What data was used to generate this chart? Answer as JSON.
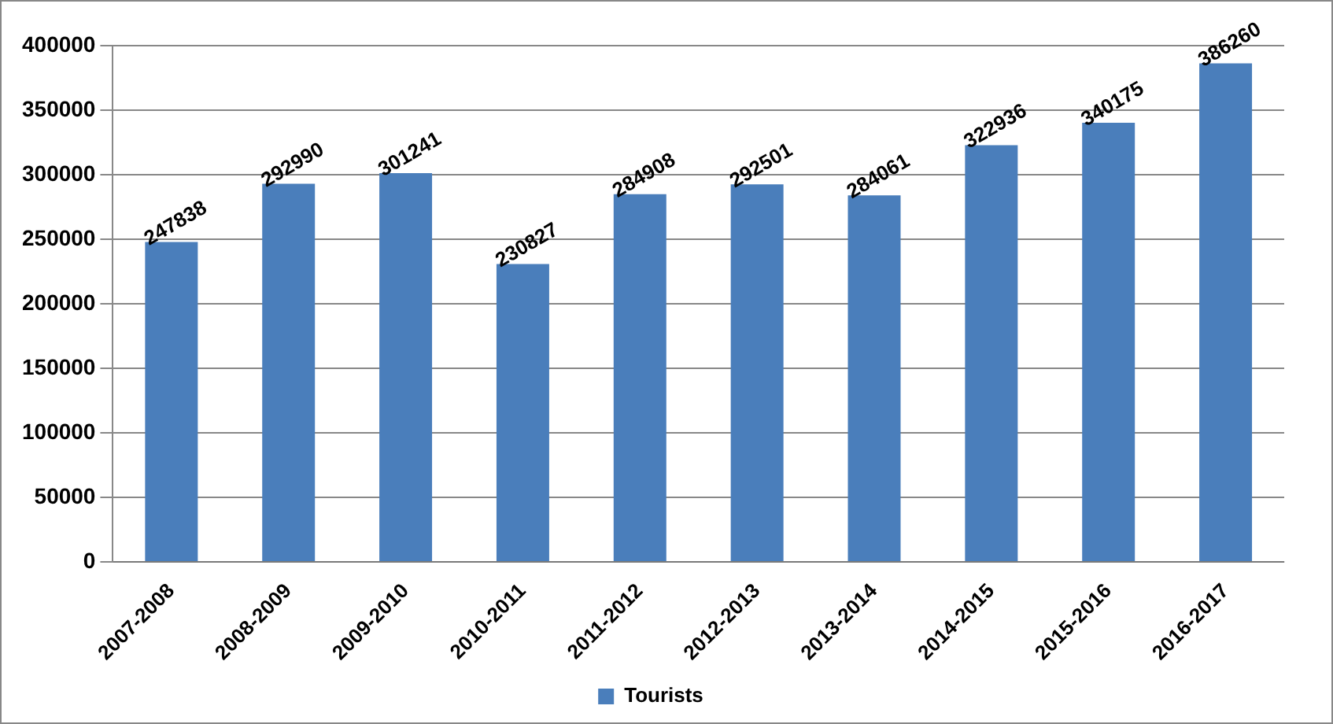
{
  "chart_data": {
    "type": "bar",
    "categories": [
      "2007-2008",
      "2008-2009",
      "2009-2010",
      "2010-2011",
      "2011-2012",
      "2012-2013",
      "2013-2014",
      "2014-2015",
      "2015-2016",
      "2016-2017"
    ],
    "series": [
      {
        "name": "Tourists",
        "color": "#4a7ebb",
        "values": [
          247838,
          292990,
          301241,
          230827,
          284908,
          292501,
          284061,
          322936,
          340175,
          386260
        ]
      }
    ],
    "ylim": [
      0,
      400000
    ],
    "yticks": [
      0,
      50000,
      100000,
      150000,
      200000,
      250000,
      300000,
      350000,
      400000
    ],
    "grid": "y",
    "legend": "bottom",
    "data_labels": true
  }
}
